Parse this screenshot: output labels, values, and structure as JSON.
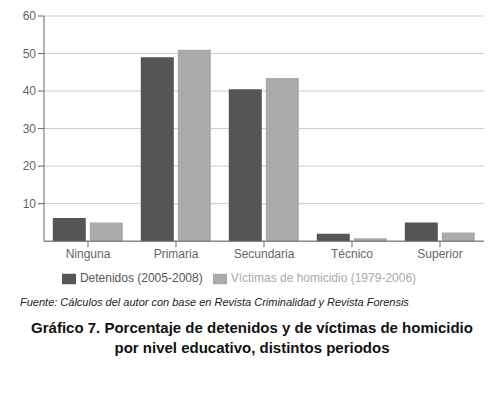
{
  "chart_data": {
    "type": "bar",
    "title": "Gráfico 7. Porcentaje de detenidos y de víctimas de homicidio por nivel educativo, distintos periodos",
    "annotations": [
      "Fuente: Cálculos del autor con base en Revista Criminalidad y Revista Forensis"
    ],
    "categories": [
      "Ninguna",
      "Primaria",
      "Secundaria",
      "Técnico",
      "Superior"
    ],
    "series": [
      {
        "name": "Detenidos (2005-2008)",
        "color": "#555555",
        "values": [
          6.2,
          49.0,
          40.5,
          2.0,
          5.0
        ]
      },
      {
        "name": "Víctimas de homicidio (1979-2006)",
        "color": "#aaaaaa",
        "values": [
          5.0,
          51.0,
          43.5,
          0.8,
          2.3
        ]
      }
    ],
    "ylim": [
      0,
      60
    ],
    "yticks": [
      10,
      20,
      30,
      40,
      50,
      60
    ],
    "grid": true,
    "legend": "bottom"
  }
}
